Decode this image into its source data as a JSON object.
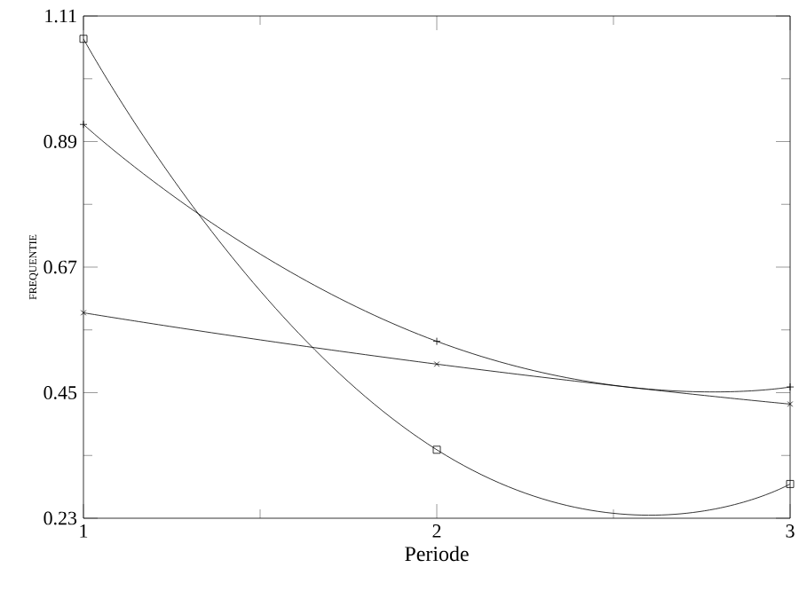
{
  "chart_data": {
    "type": "line",
    "xlabel": "Periode",
    "ylabel": "FREQUENTIE",
    "x": [
      1,
      2,
      3
    ],
    "series": [
      {
        "color": "#000000",
        "marker": "square",
        "values": [
          1.07,
          0.35,
          0.29
        ]
      },
      {
        "color": "#000000",
        "marker": "plus",
        "values": [
          0.92,
          0.54,
          0.46
        ]
      },
      {
        "color": "#000000",
        "marker": "cross",
        "values": [
          0.59,
          0.5,
          0.43
        ]
      }
    ],
    "xlim": [
      1,
      3
    ],
    "ylim": [
      0.23,
      1.11
    ],
    "xticks": [
      1,
      2,
      3
    ],
    "yticks": [
      0.23,
      0.45,
      0.67,
      0.89,
      1.11
    ],
    "line_style": "solid"
  }
}
